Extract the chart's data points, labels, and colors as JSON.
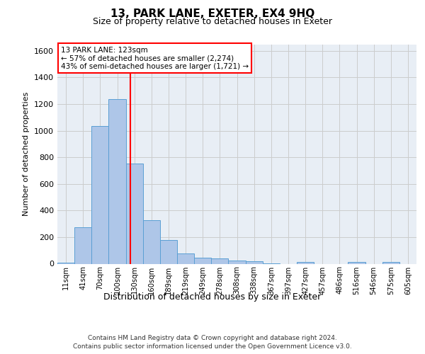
{
  "title1": "13, PARK LANE, EXETER, EX4 9HQ",
  "title2": "Size of property relative to detached houses in Exeter",
  "xlabel": "Distribution of detached houses by size in Exeter",
  "ylabel": "Number of detached properties",
  "bin_labels": [
    "11sqm",
    "41sqm",
    "70sqm",
    "100sqm",
    "130sqm",
    "160sqm",
    "189sqm",
    "219sqm",
    "249sqm",
    "278sqm",
    "308sqm",
    "338sqm",
    "367sqm",
    "397sqm",
    "427sqm",
    "457sqm",
    "486sqm",
    "516sqm",
    "546sqm",
    "575sqm",
    "605sqm"
  ],
  "bar_values": [
    10,
    275,
    1035,
    1240,
    755,
    325,
    180,
    75,
    45,
    38,
    25,
    18,
    5,
    0,
    15,
    0,
    0,
    13,
    0,
    13,
    0
  ],
  "bar_color": "#aec6e8",
  "bar_edge_color": "#5a9fd4",
  "vline_x_index": 3,
  "vline_color": "red",
  "annotation_text": "13 PARK LANE: 123sqm\n← 57% of detached houses are smaller (2,274)\n43% of semi-detached houses are larger (1,721) →",
  "annotation_box_color": "white",
  "annotation_box_edge": "red",
  "ylim": [
    0,
    1650
  ],
  "yticks": [
    0,
    200,
    400,
    600,
    800,
    1000,
    1200,
    1400,
    1600
  ],
  "grid_color": "#cccccc",
  "bg_color": "#e8eef5",
  "footer1": "Contains HM Land Registry data © Crown copyright and database right 2024.",
  "footer2": "Contains public sector information licensed under the Open Government Licence v3.0."
}
